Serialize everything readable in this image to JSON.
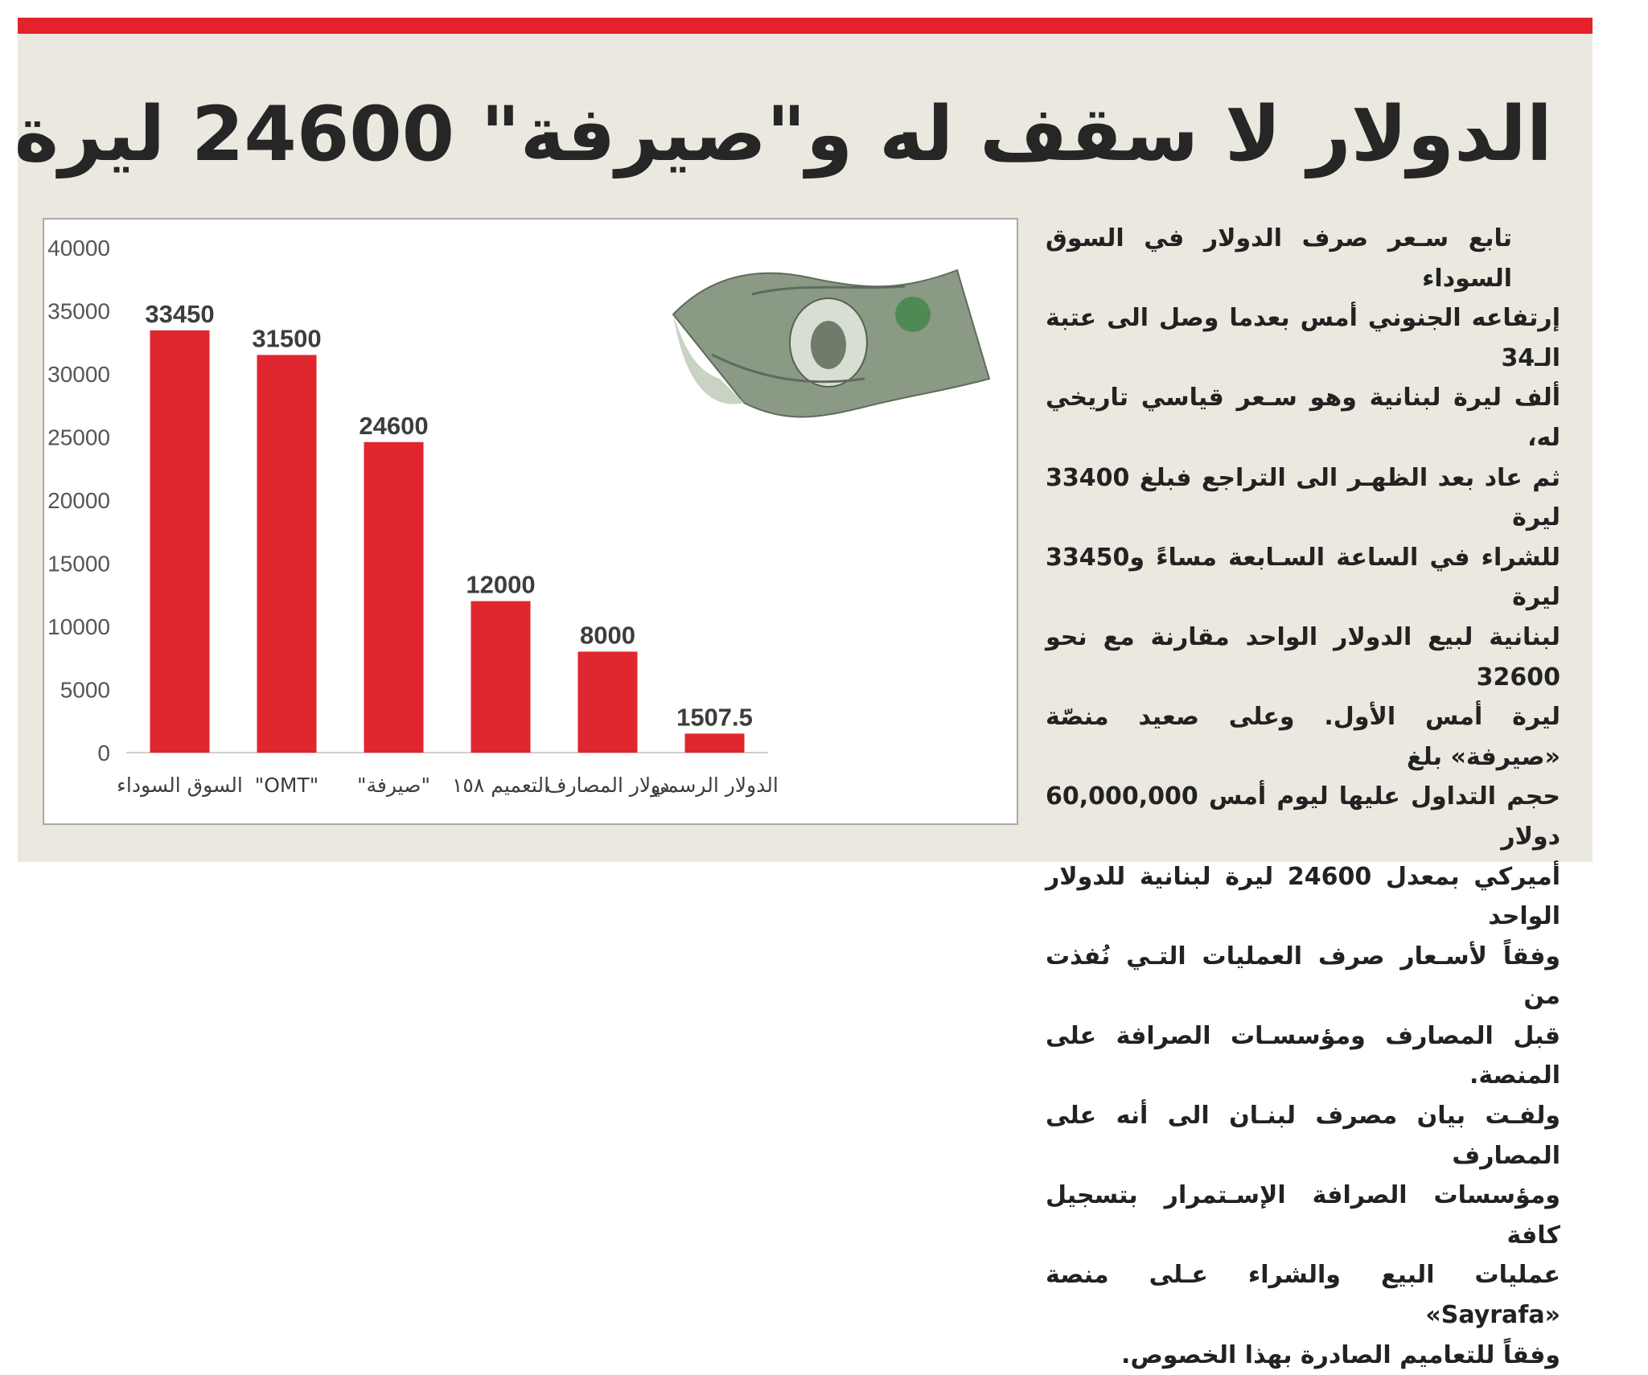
{
  "headline": "الدولار لا سقف له و\"صيرفة\" 24600 ليرة",
  "article": {
    "lines": [
      "تابع سـعر صرف الدولار في السوق السوداء",
      "إرتفاعه الجنوني أمس بعدما وصل الى عتبة الـ34",
      "ألف ليرة لبنانية وهو سـعر قياسي تاريخي له،",
      "ثم عاد بعد الظهـر الى التراجع فبلغ 33400 ليرة",
      "للشراء في الساعة السـابعة مساءً و33450 ليرة",
      "لبنانية لبيع الدولار الواحد مقارنة مع نحو 32600",
      "ليرة أمس الأول. وعلى صعيد منصّة «صيرفة» بلغ",
      "حجم التداول عليها ليوم أمس 60,000,000 دولار",
      "أميركي بمعدل 24600 ليرة لبنانية للدولار الواحد",
      "وفقاً لأسـعار صرف العمليات التـي نُفذت من",
      "قبل المصارف ومؤسسـات الصرافة على المنصة.",
      "ولفـت بيان مصرف لبنـان الى أنه على المصارف",
      "ومؤسسات الصرافة الإسـتمرار بتسجيل كافة",
      "عمليات البيع والشراء عـلى منصة «Sayrafa»",
      "وفقاً للتعاميم الصادرة بهذا الخصوص."
    ]
  },
  "colors": {
    "accent": "#e3222c",
    "bar": "#e0262e",
    "panel": "#ebe8df"
  },
  "image": {
    "icon": "dollar-bill-photo"
  },
  "chart_data": {
    "type": "bar",
    "categories": [
      "السوق السوداء",
      "\"OMT\"",
      "\"صيرفة\"",
      "التعميم ١٥٨",
      "دولار المصارف",
      "الدولار الرسمي"
    ],
    "values": [
      33450,
      31500,
      24600,
      12000,
      8000,
      1507.5
    ],
    "value_labels": [
      "33450",
      "31500",
      "24600",
      "12000",
      "8000",
      "1507.5"
    ],
    "yticks": [
      0,
      5000,
      10000,
      15000,
      20000,
      25000,
      30000,
      35000,
      40000
    ],
    "ylim": [
      0,
      40000
    ],
    "grid": false,
    "legend": "none",
    "title": "",
    "xlabel": "",
    "ylabel": ""
  }
}
